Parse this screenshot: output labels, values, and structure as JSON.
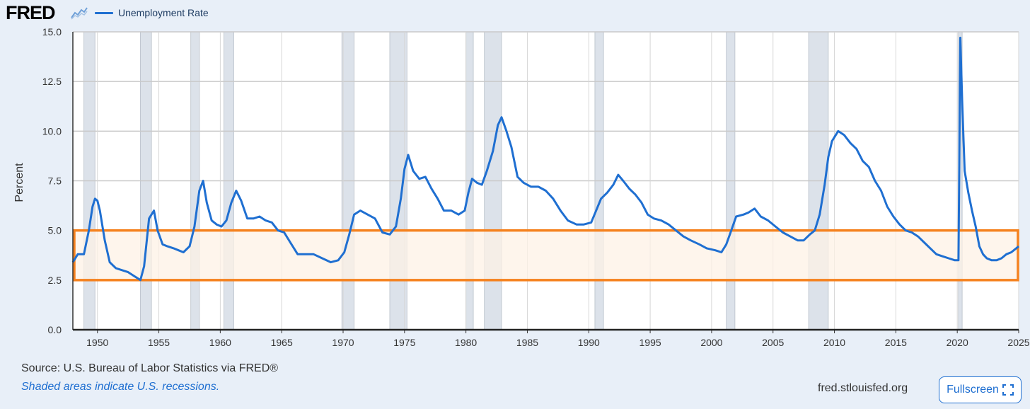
{
  "header": {
    "logo_text": "FRED",
    "logo_icon": "line-chart-icon",
    "series_label": "Unemployment Rate"
  },
  "footer": {
    "source": "Source: U.S. Bureau of Labor Statistics via FRED®",
    "note": "Shaded areas indicate U.S. recessions.",
    "site": "fred.stlouisfed.org",
    "fullscreen_label": "Fullscreen",
    "fullscreen_icon": "expand-icon"
  },
  "colors": {
    "series": "#1f6fd1",
    "recession": "#dce2ea",
    "highlight_border": "#f5821f",
    "highlight_fill": "#fdf1e6",
    "accent": "#1f6fd1"
  },
  "chart_data": {
    "type": "line",
    "ylabel": "Percent",
    "xlabel": "",
    "ylim": [
      0,
      15
    ],
    "xlim": [
      1948,
      2025
    ],
    "yticks": [
      "0.0",
      "2.5",
      "5.0",
      "7.5",
      "10.0",
      "12.5",
      "15.0"
    ],
    "xticks": [
      "1950",
      "1955",
      "1960",
      "1965",
      "1970",
      "1975",
      "1980",
      "1985",
      "1990",
      "1995",
      "2000",
      "2005",
      "2010",
      "2015",
      "2020",
      "2025"
    ],
    "grid": true,
    "series": [
      {
        "name": "Unemployment Rate",
        "x": [
          1948.0,
          1948.4,
          1948.9,
          1949.3,
          1949.6,
          1949.8,
          1950.0,
          1950.2,
          1950.6,
          1951.0,
          1951.5,
          1952.0,
          1952.5,
          1953.0,
          1953.5,
          1953.8,
          1954.2,
          1954.6,
          1954.9,
          1955.3,
          1955.7,
          1956.2,
          1956.6,
          1957.0,
          1957.5,
          1957.9,
          1958.3,
          1958.6,
          1958.9,
          1959.3,
          1959.7,
          1960.1,
          1960.5,
          1960.9,
          1961.3,
          1961.7,
          1962.2,
          1962.7,
          1963.2,
          1963.7,
          1964.2,
          1964.7,
          1965.2,
          1965.7,
          1966.3,
          1967.0,
          1967.6,
          1968.3,
          1969.0,
          1969.6,
          1970.1,
          1970.5,
          1970.9,
          1971.4,
          1972.0,
          1972.6,
          1973.2,
          1973.8,
          1974.3,
          1974.7,
          1975.0,
          1975.3,
          1975.7,
          1976.2,
          1976.7,
          1977.2,
          1977.7,
          1978.2,
          1978.8,
          1979.4,
          1979.9,
          1980.2,
          1980.5,
          1980.9,
          1981.3,
          1981.7,
          1982.2,
          1982.6,
          1982.9,
          1983.3,
          1983.7,
          1984.2,
          1984.7,
          1985.3,
          1985.9,
          1986.5,
          1987.1,
          1987.7,
          1988.3,
          1989.0,
          1989.6,
          1990.2,
          1990.6,
          1991.0,
          1991.5,
          1992.0,
          1992.4,
          1992.8,
          1993.3,
          1993.8,
          1994.3,
          1994.8,
          1995.3,
          1995.9,
          1996.5,
          1997.1,
          1997.7,
          1998.3,
          1999.0,
          1999.6,
          2000.3,
          2000.8,
          2001.2,
          2001.6,
          2002.0,
          2002.6,
          2003.0,
          2003.5,
          2004.0,
          2004.6,
          2005.2,
          2005.8,
          2006.4,
          2007.0,
          2007.5,
          2008.0,
          2008.4,
          2008.8,
          2009.2,
          2009.5,
          2009.8,
          2010.3,
          2010.8,
          2011.3,
          2011.8,
          2012.3,
          2012.8,
          2013.3,
          2013.8,
          2014.3,
          2014.8,
          2015.3,
          2015.8,
          2016.3,
          2016.8,
          2017.3,
          2017.8,
          2018.3,
          2018.8,
          2019.3,
          2019.8,
          2020.1,
          2020.25,
          2020.4,
          2020.6,
          2020.9,
          2021.2,
          2021.5,
          2021.8,
          2022.1,
          2022.4,
          2022.8,
          2023.2,
          2023.6,
          2024.0,
          2024.4,
          2024.8,
          2025.0
        ],
        "y": [
          3.4,
          3.8,
          3.8,
          5.0,
          6.2,
          6.6,
          6.5,
          6.0,
          4.5,
          3.4,
          3.1,
          3.0,
          2.9,
          2.7,
          2.5,
          3.2,
          5.6,
          6.0,
          5.0,
          4.3,
          4.2,
          4.1,
          4.0,
          3.9,
          4.2,
          5.2,
          7.0,
          7.5,
          6.4,
          5.5,
          5.3,
          5.2,
          5.5,
          6.4,
          7.0,
          6.5,
          5.6,
          5.6,
          5.7,
          5.5,
          5.4,
          5.0,
          4.9,
          4.4,
          3.8,
          3.8,
          3.8,
          3.6,
          3.4,
          3.5,
          3.9,
          4.8,
          5.8,
          6.0,
          5.8,
          5.6,
          4.9,
          4.8,
          5.2,
          6.6,
          8.1,
          8.8,
          8.0,
          7.6,
          7.7,
          7.1,
          6.6,
          6.0,
          6.0,
          5.8,
          6.0,
          6.9,
          7.6,
          7.4,
          7.3,
          8.0,
          9.0,
          10.3,
          10.7,
          10.0,
          9.2,
          7.7,
          7.4,
          7.2,
          7.2,
          7.0,
          6.6,
          6.0,
          5.5,
          5.3,
          5.3,
          5.4,
          6.0,
          6.6,
          6.9,
          7.3,
          7.8,
          7.5,
          7.1,
          6.8,
          6.4,
          5.8,
          5.6,
          5.5,
          5.3,
          5.0,
          4.7,
          4.5,
          4.3,
          4.1,
          4.0,
          3.9,
          4.3,
          5.0,
          5.7,
          5.8,
          5.9,
          6.1,
          5.7,
          5.5,
          5.2,
          4.9,
          4.7,
          4.5,
          4.5,
          4.8,
          5.0,
          5.8,
          7.3,
          8.7,
          9.5,
          10.0,
          9.8,
          9.4,
          9.1,
          8.5,
          8.2,
          7.5,
          7.0,
          6.2,
          5.7,
          5.3,
          5.0,
          4.9,
          4.7,
          4.4,
          4.1,
          3.8,
          3.7,
          3.6,
          3.5,
          3.5,
          14.7,
          11.5,
          8.0,
          6.9,
          6.0,
          5.2,
          4.2,
          3.8,
          3.6,
          3.5,
          3.5,
          3.6,
          3.8,
          3.9,
          4.1,
          4.2
        ]
      }
    ],
    "recessions": [
      [
        1948.9,
        1949.8
      ],
      [
        1953.5,
        1954.4
      ],
      [
        1957.6,
        1958.3
      ],
      [
        1960.3,
        1961.1
      ],
      [
        1969.9,
        1970.9
      ],
      [
        1973.8,
        1975.2
      ],
      [
        1980.0,
        1980.6
      ],
      [
        1981.5,
        1982.9
      ],
      [
        1990.5,
        1991.2
      ],
      [
        2001.2,
        2001.9
      ],
      [
        2007.9,
        2009.5
      ],
      [
        2020.1,
        2020.4
      ]
    ],
    "highlight_band": [
      2.5,
      5.0
    ]
  }
}
